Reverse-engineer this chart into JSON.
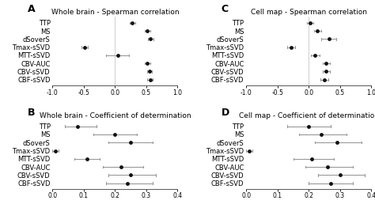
{
  "labels": [
    "TTP",
    "MS",
    "dSoverS",
    "Tmax-sSVD",
    "MTT-sSVD",
    "CBV-AUC",
    "CBV-sSVD",
    "CBF-sSVD"
  ],
  "panels": [
    {
      "label": "A",
      "title": "Whole brain - Spearman correlation",
      "xlim": [
        -1.0,
        1.0
      ],
      "xticks": [
        -1.0,
        -0.5,
        0.0,
        0.5,
        1.0
      ],
      "xtick_labels": [
        "-1.0",
        "-0.5",
        "0.0",
        "0.5",
        "1.0"
      ],
      "values": [
        0.28,
        0.52,
        0.57,
        -0.48,
        0.04,
        0.52,
        0.55,
        0.56
      ],
      "err_low": [
        0.05,
        0.04,
        0.04,
        0.05,
        0.18,
        0.04,
        0.04,
        0.04
      ],
      "err_high": [
        0.05,
        0.04,
        0.04,
        0.05,
        0.18,
        0.04,
        0.04,
        0.04
      ]
    },
    {
      "label": "C",
      "title": "Cell map - Spearman correlation",
      "xlim": [
        -1.0,
        1.0
      ],
      "xticks": [
        -1.0,
        -0.5,
        0.0,
        0.5,
        1.0
      ],
      "xtick_labels": [
        "-1.0",
        "-0.5",
        "0.0",
        "0.5",
        "1.0"
      ],
      "values": [
        0.02,
        0.14,
        0.32,
        -0.28,
        0.1,
        0.28,
        0.28,
        0.25
      ],
      "err_low": [
        0.05,
        0.06,
        0.12,
        0.06,
        0.07,
        0.06,
        0.06,
        0.06
      ],
      "err_high": [
        0.05,
        0.06,
        0.12,
        0.06,
        0.07,
        0.06,
        0.06,
        0.06
      ]
    },
    {
      "label": "B",
      "title": "Whole brain - Coefficient of determination",
      "xlim": [
        0.0,
        0.4
      ],
      "xticks": [
        0.0,
        0.1,
        0.2,
        0.3,
        0.4
      ],
      "xtick_labels": [
        "0.0",
        "0.1",
        "0.2",
        "0.3",
        "0.4"
      ],
      "values": [
        0.08,
        0.2,
        0.25,
        0.01,
        0.11,
        0.22,
        0.25,
        0.24
      ],
      "err_low": [
        0.04,
        0.07,
        0.07,
        0.01,
        0.04,
        0.06,
        0.07,
        0.07
      ],
      "err_high": [
        0.06,
        0.07,
        0.07,
        0.01,
        0.04,
        0.07,
        0.08,
        0.08
      ]
    },
    {
      "label": "D",
      "title": "Cell map - Coefficient of determination",
      "xlim": [
        0.0,
        0.4
      ],
      "xticks": [
        0.0,
        0.1,
        0.2,
        0.3,
        0.4
      ],
      "xtick_labels": [
        "0.0",
        "0.1",
        "0.2",
        "0.3",
        "0.4"
      ],
      "values": [
        0.2,
        0.24,
        0.29,
        0.01,
        0.21,
        0.26,
        0.3,
        0.27
      ],
      "err_low": [
        0.07,
        0.07,
        0.07,
        0.01,
        0.06,
        0.07,
        0.07,
        0.07
      ],
      "err_high": [
        0.07,
        0.08,
        0.08,
        0.01,
        0.07,
        0.08,
        0.08,
        0.07
      ]
    }
  ],
  "dot_color": "#111111",
  "line_color": "#999999",
  "dot_size": 3.5,
  "line_width": 0.8,
  "cap_size": 0.12,
  "title_fontsize": 6.5,
  "panel_label_fontsize": 9,
  "tick_fontsize": 5.5,
  "ylabel_fontsize": 6.0,
  "background_color": "#ffffff"
}
